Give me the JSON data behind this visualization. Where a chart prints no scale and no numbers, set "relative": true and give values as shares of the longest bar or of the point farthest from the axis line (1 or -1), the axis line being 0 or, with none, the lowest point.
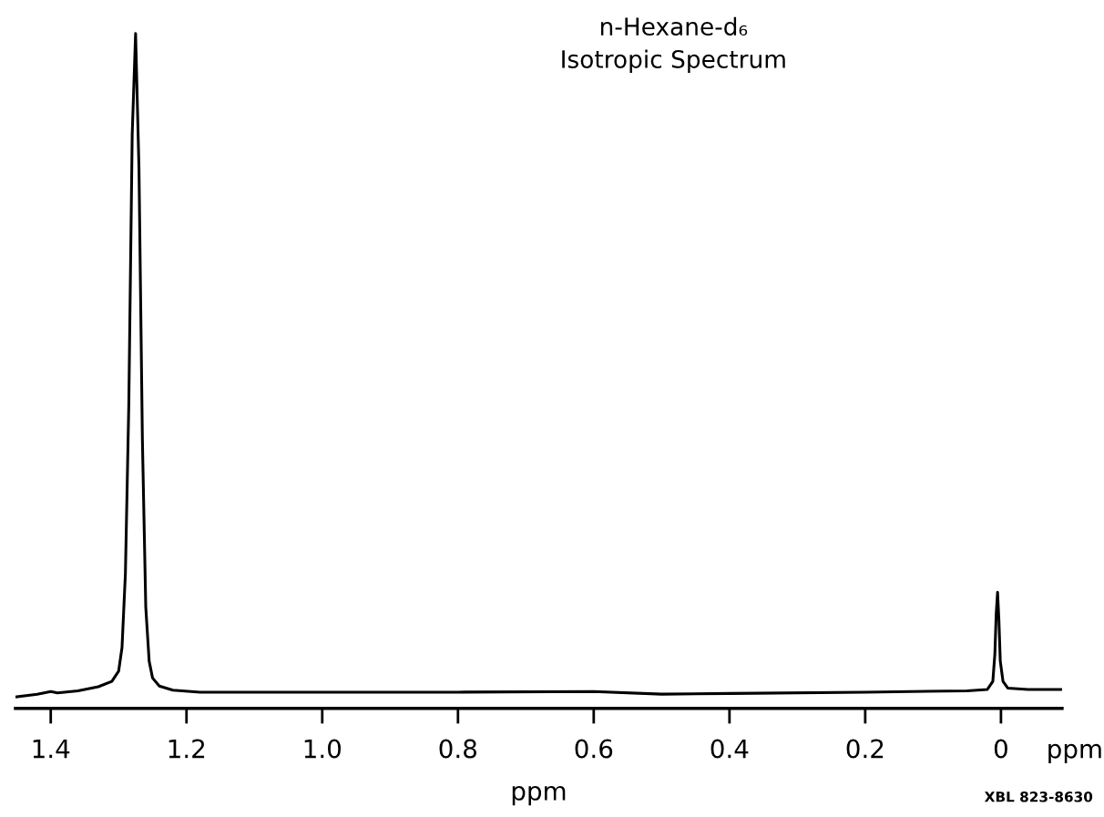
{
  "chart_data": {
    "type": "line",
    "title": "n-Hexane-d₆",
    "subtitle": "Isotropic Spectrum",
    "xlabel": "ppm",
    "annotations": [
      "ppm",
      "XBL 823-8630"
    ],
    "relative": true,
    "tick_labels": "x",
    "grid": false,
    "marker": "none",
    "line_style": "solid",
    "xlim": [
      1.452,
      -0.09
    ],
    "xticks": [
      1.4,
      1.2,
      {
        "value": 1.0,
        "label": "1.0"
      },
      0.8,
      0.6,
      0.4,
      0.2,
      0
    ],
    "series": [
      {
        "color": "#000000",
        "x": [
          1.45,
          1.42,
          1.4,
          1.39,
          1.36,
          1.33,
          1.31,
          1.3,
          1.295,
          1.29,
          1.285,
          1.28,
          1.275,
          1.27,
          1.265,
          1.26,
          1.255,
          1.25,
          1.24,
          1.22,
          1.18,
          1.0,
          0.8,
          0.6,
          0.5,
          0.4,
          0.2,
          0.05,
          0.02,
          0.012,
          0.009,
          0.007,
          0.005,
          0.003,
          0.001,
          -0.003,
          -0.01,
          -0.04,
          -0.09
        ],
        "values": [
          0.017,
          0.021,
          0.025,
          0.023,
          0.026,
          0.032,
          0.04,
          0.055,
          0.09,
          0.2,
          0.45,
          0.85,
          1.0,
          0.8,
          0.4,
          0.15,
          0.07,
          0.045,
          0.033,
          0.027,
          0.024,
          0.024,
          0.024,
          0.025,
          0.021,
          0.022,
          0.024,
          0.026,
          0.028,
          0.04,
          0.08,
          0.14,
          0.172,
          0.13,
          0.07,
          0.04,
          0.03,
          0.028,
          0.028
        ]
      }
    ]
  }
}
